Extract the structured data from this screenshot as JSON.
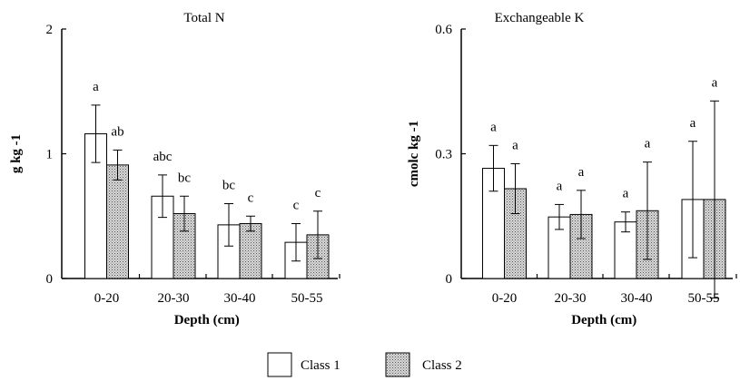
{
  "chart_data": [
    {
      "type": "bar",
      "title": "Total N",
      "xlabel": "Depth (cm)",
      "ylabel": "g kg -1",
      "ylim": [
        0,
        2
      ],
      "yticks": [
        "0",
        "1",
        "2"
      ],
      "categories": [
        "0-20",
        "20-30",
        "30-40",
        "50-55"
      ],
      "series": [
        {
          "name": "Class 1",
          "values": [
            1.16,
            0.66,
            0.43,
            0.29
          ],
          "errors": [
            0.23,
            0.17,
            0.17,
            0.15
          ],
          "labels": [
            "a",
            "abc",
            "bc",
            "c"
          ]
        },
        {
          "name": "Class 2",
          "values": [
            0.91,
            0.52,
            0.44,
            0.35
          ],
          "errors": [
            0.12,
            0.14,
            0.06,
            0.19
          ],
          "labels": [
            "ab",
            "bc",
            "c",
            "c"
          ]
        }
      ]
    },
    {
      "type": "bar",
      "title": "Exchangeable K",
      "xlabel": "Depth (cm)",
      "ylabel": "cmolc kg -1",
      "ylim": [
        0,
        0.6
      ],
      "yticks": [
        "0",
        "0.3",
        "0.6"
      ],
      "categories": [
        "0-20",
        "20-30",
        "30-40",
        "50-55"
      ],
      "series": [
        {
          "name": "Class 1",
          "values": [
            0.265,
            0.148,
            0.136,
            0.19
          ],
          "errors": [
            0.055,
            0.03,
            0.024,
            0.14
          ],
          "labels": [
            "a",
            "a",
            "a",
            "a"
          ]
        },
        {
          "name": "Class 2",
          "values": [
            0.216,
            0.154,
            0.163,
            0.19
          ],
          "errors": [
            0.06,
            0.058,
            0.117,
            0.237
          ],
          "labels": [
            "a",
            "a",
            "a",
            "a"
          ]
        }
      ]
    }
  ],
  "legend": [
    {
      "label": "Class 1"
    },
    {
      "label": "Class 2"
    }
  ]
}
